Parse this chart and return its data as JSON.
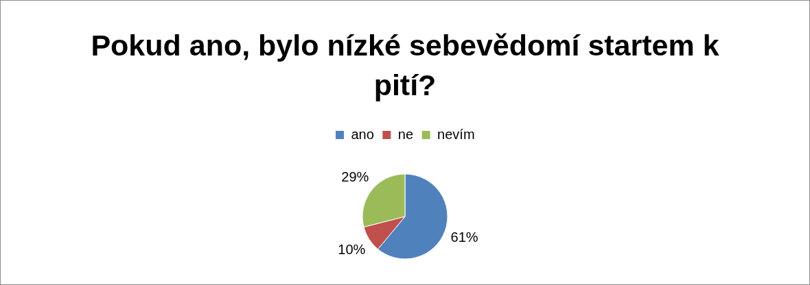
{
  "chart_data": {
    "type": "pie",
    "title": "Pokud ano, bylo nízké sebevědomí startem k pití?",
    "categories": [
      "ano",
      "ne",
      "nevím"
    ],
    "values": [
      61,
      10,
      29
    ],
    "colors": [
      "#4f81bd",
      "#c0504d",
      "#9bbb59"
    ],
    "value_labels": [
      "61%",
      "10%",
      "29%"
    ],
    "legend": "top"
  }
}
